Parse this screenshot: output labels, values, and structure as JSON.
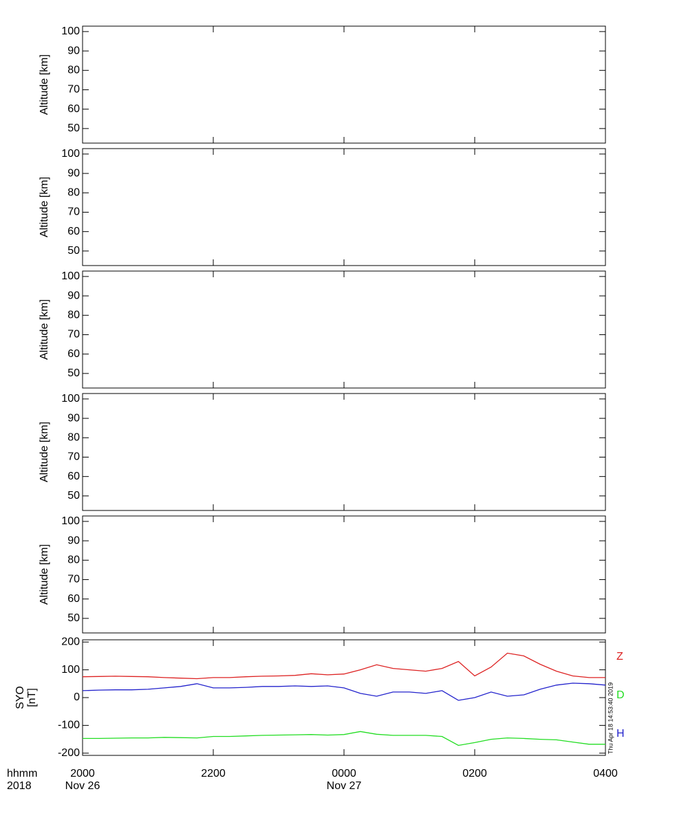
{
  "chart_data": [
    {
      "type": "line",
      "ylabel": "Altitude [km]",
      "xlim": [
        20,
        28
      ],
      "xticks": [
        20,
        22,
        24,
        26,
        28
      ],
      "ylim": [
        42.5,
        102.8
      ],
      "yticks": [
        50,
        60,
        70,
        80,
        90,
        100
      ],
      "series": []
    },
    {
      "type": "line",
      "ylabel": "Altitude [km]",
      "xlim": [
        20,
        28
      ],
      "xticks": [
        20,
        22,
        24,
        26,
        28
      ],
      "ylim": [
        42.5,
        102.8
      ],
      "yticks": [
        50,
        60,
        70,
        80,
        90,
        100
      ],
      "series": []
    },
    {
      "type": "line",
      "ylabel": "Altitude [km]",
      "xlim": [
        20,
        28
      ],
      "xticks": [
        20,
        22,
        24,
        26,
        28
      ],
      "ylim": [
        42.5,
        102.8
      ],
      "yticks": [
        50,
        60,
        70,
        80,
        90,
        100
      ],
      "series": []
    },
    {
      "type": "line",
      "ylabel": "Altitude [km]",
      "xlim": [
        20,
        28
      ],
      "xticks": [
        20,
        22,
        24,
        26,
        28
      ],
      "ylim": [
        42.5,
        102.8
      ],
      "yticks": [
        50,
        60,
        70,
        80,
        90,
        100
      ],
      "series": []
    },
    {
      "type": "line",
      "ylabel": "Altitude [km]",
      "xlim": [
        20,
        28
      ],
      "xticks": [
        20,
        22,
        24,
        26,
        28
      ],
      "ylim": [
        42.5,
        102.8
      ],
      "yticks": [
        50,
        60,
        70,
        80,
        90,
        100
      ],
      "series": []
    },
    {
      "type": "line",
      "ylabel": [
        "SYO",
        "[nT]"
      ],
      "xlim": [
        20,
        28
      ],
      "xticks": [
        {
          "value": 20,
          "label": "2000"
        },
        {
          "value": 22,
          "label": "2200"
        },
        {
          "value": 24,
          "label": "0000"
        },
        {
          "value": 26,
          "label": "0200"
        },
        {
          "value": 28,
          "label": "0400"
        }
      ],
      "x_row_label": "hhmm",
      "date_row_label": "2018",
      "date_labels": [
        {
          "value": 20,
          "label": "Nov 26"
        },
        {
          "value": 24,
          "label": "Nov 27"
        }
      ],
      "timestamp": "Thu Apr 18 14:53:40 2019",
      "ylim": [
        -208,
        208
      ],
      "yticks": [
        -200,
        -100,
        0,
        100,
        200
      ],
      "x": [
        20,
        20.25,
        20.5,
        20.75,
        21,
        21.25,
        21.5,
        21.75,
        22,
        22.25,
        22.5,
        22.75,
        23,
        23.25,
        23.5,
        23.75,
        24,
        24.25,
        24.5,
        24.75,
        25,
        25.25,
        25.5,
        25.75,
        26,
        26.25,
        26.5,
        26.75,
        27,
        27.25,
        27.5,
        27.75,
        28
      ],
      "series": [
        {
          "name": "Z",
          "color": "#dd2222",
          "values": [
            75,
            76,
            77,
            76,
            75,
            72,
            70,
            68,
            72,
            72,
            75,
            77,
            78,
            80,
            86,
            82,
            85,
            100,
            118,
            105,
            100,
            95,
            105,
            130,
            78,
            110,
            160,
            150,
            120,
            95,
            78,
            72,
            72
          ]
        },
        {
          "name": "D",
          "color": "#22dd22",
          "values": [
            -147,
            -147,
            -146,
            -145,
            -145,
            -143,
            -144,
            -145,
            -140,
            -140,
            -138,
            -136,
            -135,
            -134,
            -133,
            -135,
            -133,
            -122,
            -132,
            -136,
            -136,
            -136,
            -140,
            -172,
            -162,
            -150,
            -145,
            -147,
            -150,
            -152,
            -160,
            -168,
            -168
          ]
        },
        {
          "name": "H",
          "color": "#2222cc",
          "values": [
            25,
            27,
            28,
            28,
            30,
            35,
            40,
            50,
            35,
            35,
            37,
            40,
            40,
            42,
            40,
            42,
            35,
            15,
            5,
            20,
            20,
            15,
            25,
            -10,
            0,
            20,
            5,
            10,
            30,
            45,
            52,
            50,
            45
          ]
        }
      ]
    }
  ]
}
